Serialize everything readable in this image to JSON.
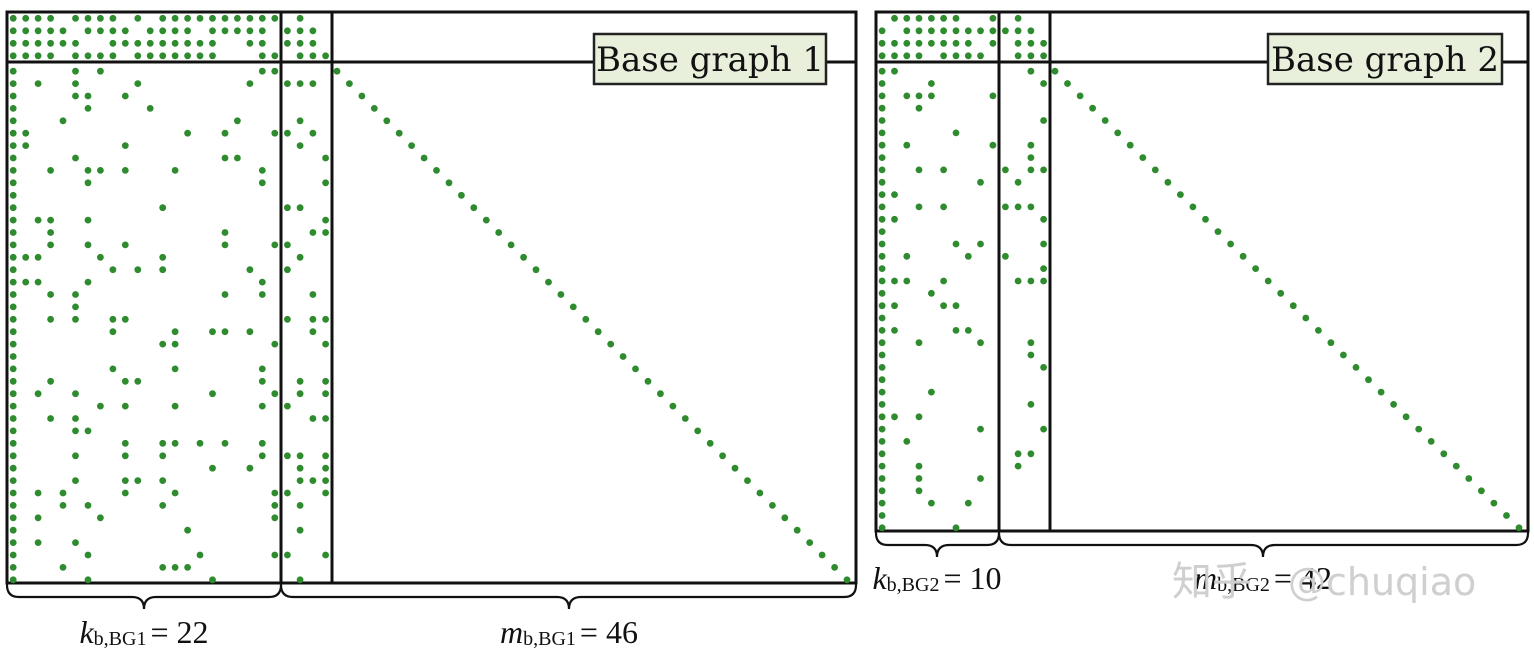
{
  "colors": {
    "dot": "#2e8b2e",
    "label_fill": "#e8f0dc",
    "stroke": "#111111",
    "watermark": "#cfcfcf"
  },
  "panels": [
    {
      "label": "Base graph 1",
      "k_symbol": "k",
      "k_sub": "b,BG1",
      "k_value": "= 22",
      "m_symbol": "m",
      "m_sub": "b,BG1",
      "m_value": "= 46",
      "info_cols": 22,
      "core_rows": 4,
      "parity_cols": 4,
      "extension_rows": 42
    },
    {
      "label": "Base graph 2",
      "k_symbol": "k",
      "k_sub": "b,BG2",
      "k_value": "= 10",
      "m_symbol": "m",
      "m_sub": "b,BG2",
      "m_value": "= 42",
      "info_cols": 10,
      "core_rows": 4,
      "parity_cols": 4,
      "extension_rows": 38
    }
  ],
  "watermark": {
    "han": "知乎",
    "handle": "@chuqiao"
  }
}
